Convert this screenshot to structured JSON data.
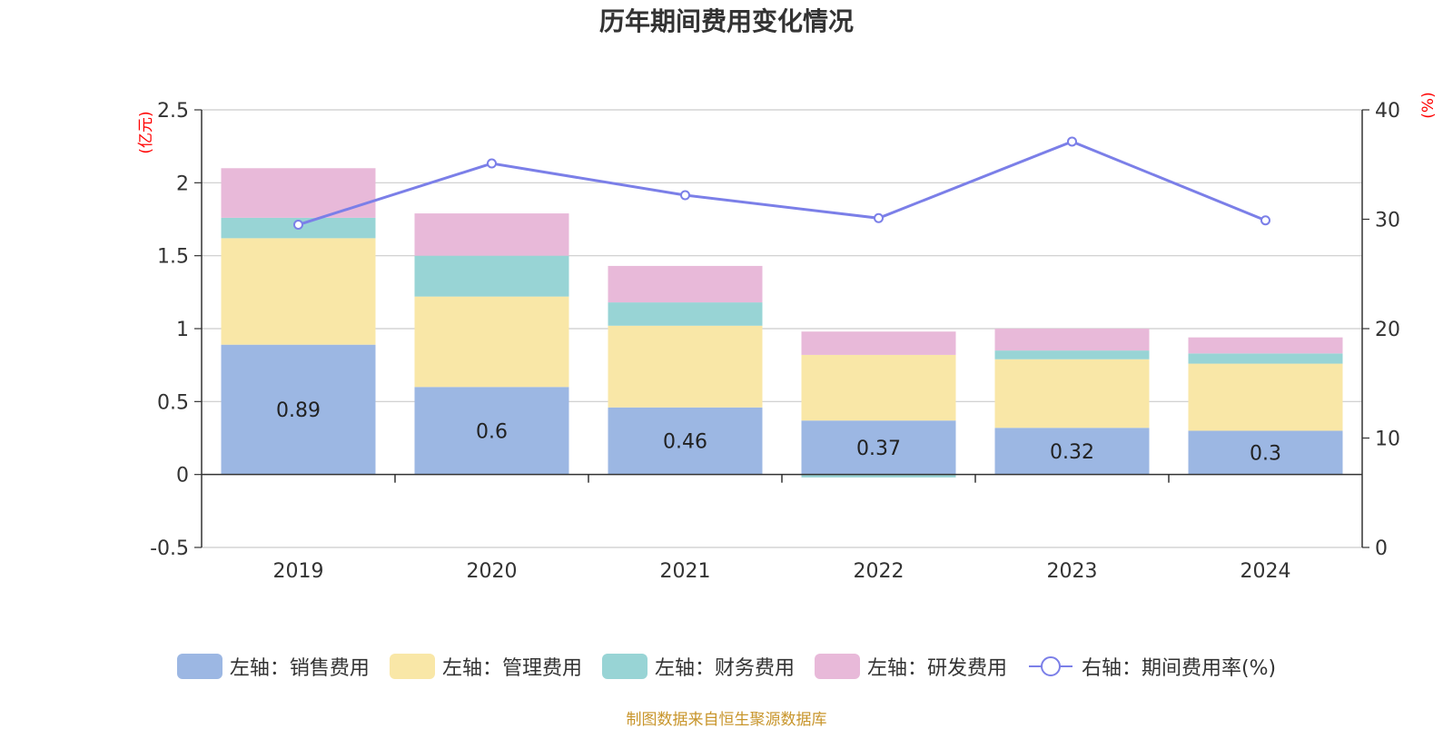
{
  "chart_data": {
    "type": "bar",
    "stacked": true,
    "title": "历年期间费用变化情况",
    "categories": [
      "2019",
      "2020",
      "2021",
      "2022",
      "2023",
      "2024"
    ],
    "y_left": {
      "unit_label": "(亿元)",
      "ticks": [
        "2.5",
        "2",
        "1.5",
        "1",
        "0.5",
        "0",
        "-0.5"
      ],
      "range": [
        -0.5,
        2.5
      ],
      "color": "#ff0000"
    },
    "y_right": {
      "unit_label": "(%)",
      "ticks": [
        "40",
        "30",
        "20",
        "10",
        "0"
      ],
      "range": [
        0,
        40
      ],
      "color": "#ff0000"
    },
    "series": [
      {
        "name": "左轴：销售费用",
        "type": "bar",
        "axis": "left",
        "color": "#9cb7e3",
        "values": [
          0.89,
          0.6,
          0.46,
          0.37,
          0.32,
          0.3
        ],
        "data_labels": [
          "0.89",
          "0.6",
          "0.46",
          "0.37",
          "0.32",
          "0.3"
        ]
      },
      {
        "name": "左轴：管理费用",
        "type": "bar",
        "axis": "left",
        "color": "#f9e7a7",
        "values": [
          0.73,
          0.62,
          0.56,
          0.45,
          0.47,
          0.46
        ]
      },
      {
        "name": "左轴：财务费用",
        "type": "bar",
        "axis": "left",
        "color": "#98d4d5",
        "values": [
          0.14,
          0.28,
          0.16,
          -0.02,
          0.06,
          0.07
        ]
      },
      {
        "name": "左轴：研发费用",
        "type": "bar",
        "axis": "left",
        "color": "#e8b9d9",
        "values": [
          0.34,
          0.29,
          0.25,
          0.16,
          0.15,
          0.11
        ]
      },
      {
        "name": "右轴：期间费用率(%)",
        "type": "line",
        "axis": "right",
        "color": "#7b7fe8",
        "values": [
          29.5,
          35.1,
          32.2,
          30.1,
          37.1,
          29.9
        ]
      }
    ],
    "grid": true,
    "legend_position": "bottom-center"
  },
  "source_note": "制图数据来自恒生聚源数据库"
}
